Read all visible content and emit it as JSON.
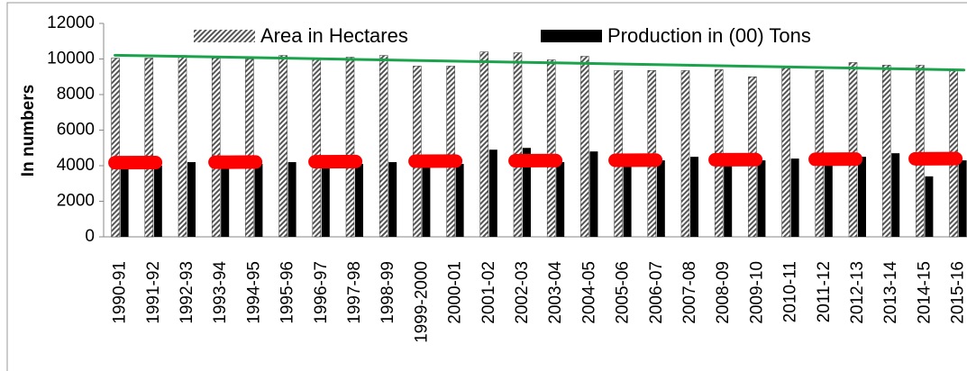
{
  "chart_data": {
    "type": "bar",
    "categories": [
      "1990-91",
      "1991-92",
      "1992-93",
      "1993-94",
      "1994-95",
      "1995-96",
      "1996-97",
      "1997-98",
      "1998-99",
      "1999-2000",
      "2000-01",
      "2001-02",
      "2002-03",
      "2003-04",
      "2004-05",
      "2005-06",
      "2006-07",
      "2007-08",
      "2008-09",
      "2009-10",
      "2010-11",
      "2011-12",
      "2012-13",
      "2013-14",
      "2014-15",
      "2015-16"
    ],
    "series": [
      {
        "name": "Area in Hectares",
        "color": "#555555",
        "pattern": "hatch",
        "trend_color": "#1aa34a",
        "values": [
          10050,
          10050,
          10200,
          10050,
          10000,
          10200,
          10000,
          10100,
          10200,
          9600,
          9600,
          10400,
          10350,
          9950,
          10150,
          9350,
          9350,
          9350,
          9400,
          9000,
          9500,
          9350,
          9800,
          9650,
          9650,
          9400
        ]
      },
      {
        "name": "Production in (00) Tons",
        "color": "#000000",
        "pattern": "solid",
        "trend_color": "#ff0000",
        "trend_dash": true,
        "values": [
          4100,
          4000,
          4200,
          4000,
          4100,
          4200,
          4100,
          4100,
          4200,
          4100,
          4100,
          4900,
          5000,
          4200,
          4800,
          4200,
          4300,
          4500,
          4400,
          4300,
          4400,
          4300,
          4500,
          4700,
          3400,
          4300
        ]
      }
    ],
    "y_label": "In numbers",
    "ylim": [
      0,
      12000
    ],
    "yticks": [
      0,
      2000,
      4000,
      6000,
      8000,
      10000,
      12000
    ],
    "legend": "top",
    "trendlines": true
  }
}
